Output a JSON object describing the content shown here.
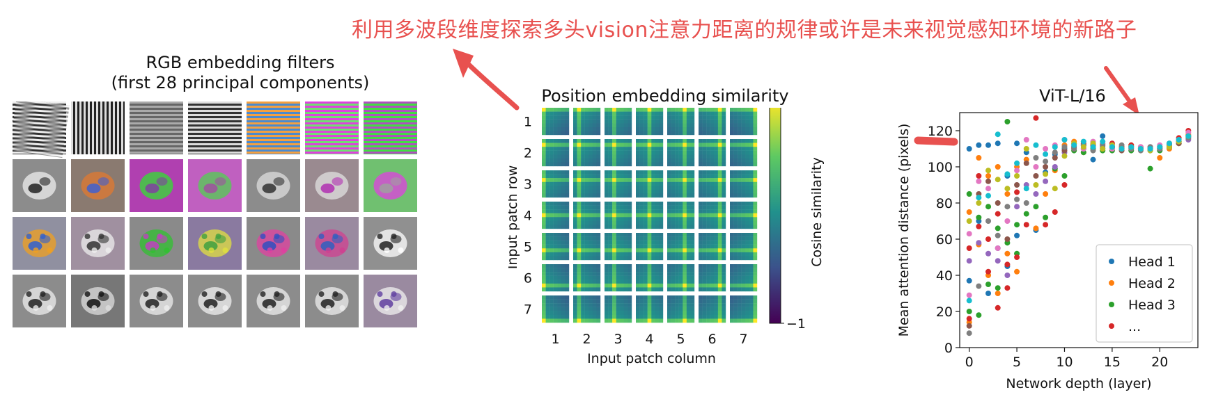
{
  "annotation": {
    "text": "利用多波段维度探索多头vision注意力距离的规律或许是未来视觉感知环境的新路子",
    "color": "#e8514f"
  },
  "filters_panel": {
    "title_line1": "RGB embedding filters",
    "title_line2": "(first 28 principal components)",
    "rows": 4,
    "cols": 7
  },
  "position_panel": {
    "title": "Position embedding similarity",
    "row_labels": [
      "1",
      "2",
      "3",
      "4",
      "5",
      "6",
      "7"
    ],
    "col_labels": [
      "1",
      "2",
      "3",
      "4",
      "5",
      "6",
      "7"
    ],
    "ylabel": "Input patch row",
    "xlabel": "Input patch column",
    "colorbar_label": "Cosine similarity",
    "colorbar_max": "1",
    "colorbar_min": "−1"
  },
  "chart_data": {
    "type": "scatter",
    "title": "ViT-L/16",
    "xlabel": "Network depth (layer)",
    "ylabel": "Mean attention distance (pixels)",
    "xlim": [
      -1,
      24
    ],
    "ylim": [
      0,
      130
    ],
    "xticks": [
      0,
      5,
      10,
      15,
      20
    ],
    "yticks": [
      0,
      20,
      40,
      60,
      80,
      100,
      120
    ],
    "legend": [
      "Head 1",
      "Head 2",
      "Head 3",
      "..."
    ],
    "legend_position": "lower-right",
    "series": [
      {
        "name": "Head 1",
        "color": "#1f77b4",
        "points": [
          [
            0,
            110
          ],
          [
            0,
            37
          ],
          [
            1,
            112
          ],
          [
            1,
            70
          ],
          [
            2,
            112
          ],
          [
            2,
            30
          ],
          [
            3,
            113
          ],
          [
            3,
            55
          ],
          [
            4,
            95
          ],
          [
            4,
            45
          ],
          [
            5,
            113
          ],
          [
            5,
            62
          ],
          [
            6,
            108
          ],
          [
            7,
            65
          ],
          [
            8,
            97
          ],
          [
            9,
            107
          ],
          [
            10,
            110
          ],
          [
            11,
            113
          ],
          [
            12,
            112
          ],
          [
            13,
            104
          ],
          [
            14,
            117
          ],
          [
            15,
            111
          ],
          [
            16,
            110
          ],
          [
            17,
            111
          ],
          [
            18,
            110
          ],
          [
            19,
            109
          ],
          [
            20,
            111
          ],
          [
            21,
            112
          ],
          [
            22,
            114
          ],
          [
            23,
            116
          ]
        ]
      },
      {
        "name": "Head 2",
        "color": "#ff7f0e",
        "points": [
          [
            0,
            75
          ],
          [
            0,
            14
          ],
          [
            1,
            105
          ],
          [
            1,
            57
          ],
          [
            2,
            95
          ],
          [
            2,
            40
          ],
          [
            3,
            100
          ],
          [
            3,
            30
          ],
          [
            4,
            85
          ],
          [
            4,
            52
          ],
          [
            5,
            100
          ],
          [
            5,
            42
          ],
          [
            6,
            104
          ],
          [
            7,
            66
          ],
          [
            8,
            85
          ],
          [
            9,
            98
          ],
          [
            10,
            112
          ],
          [
            11,
            114
          ],
          [
            12,
            108
          ],
          [
            13,
            112
          ],
          [
            14,
            113
          ],
          [
            15,
            110
          ],
          [
            16,
            110
          ],
          [
            17,
            112
          ],
          [
            18,
            110
          ],
          [
            19,
            110
          ],
          [
            20,
            105
          ],
          [
            21,
            110
          ],
          [
            22,
            113
          ],
          [
            23,
            118
          ]
        ]
      },
      {
        "name": "Head 3",
        "color": "#2ca02c",
        "points": [
          [
            0,
            85
          ],
          [
            0,
            20
          ],
          [
            1,
            72
          ],
          [
            1,
            18
          ],
          [
            2,
            78
          ],
          [
            2,
            35
          ],
          [
            3,
            66
          ],
          [
            3,
            33
          ],
          [
            4,
            125
          ],
          [
            4,
            58
          ],
          [
            5,
            68
          ],
          [
            5,
            52
          ],
          [
            6,
            74
          ],
          [
            7,
            78
          ],
          [
            8,
            72
          ],
          [
            9,
            99
          ],
          [
            10,
            95
          ],
          [
            11,
            109
          ],
          [
            12,
            108
          ],
          [
            13,
            110
          ],
          [
            14,
            109
          ],
          [
            15,
            109
          ],
          [
            16,
            110
          ],
          [
            17,
            109
          ],
          [
            18,
            110
          ],
          [
            19,
            99
          ],
          [
            20,
            109
          ],
          [
            21,
            111
          ],
          [
            22,
            113
          ],
          [
            23,
            117
          ]
        ]
      },
      {
        "name": "...",
        "color": "#d62728",
        "points": [
          [
            0,
            55
          ],
          [
            0,
            16
          ],
          [
            1,
            67
          ],
          [
            1,
            95
          ],
          [
            2,
            60
          ],
          [
            2,
            42
          ],
          [
            3,
            74
          ],
          [
            3,
            22
          ],
          [
            4,
            46
          ],
          [
            4,
            33
          ],
          [
            5,
            86
          ],
          [
            5,
            50
          ],
          [
            6,
            68
          ],
          [
            7,
            127
          ],
          [
            8,
            68
          ],
          [
            9,
            75
          ],
          [
            10,
            90
          ],
          [
            11,
            110
          ],
          [
            12,
            113
          ],
          [
            13,
            112
          ],
          [
            14,
            112
          ],
          [
            15,
            113
          ],
          [
            16,
            111
          ],
          [
            17,
            112
          ],
          [
            18,
            111
          ],
          [
            19,
            110
          ],
          [
            20,
            111
          ],
          [
            21,
            113
          ],
          [
            22,
            116
          ],
          [
            23,
            120
          ]
        ]
      },
      {
        "name": "",
        "color": "#9467bd",
        "points": [
          [
            0,
            48
          ],
          [
            1,
            58
          ],
          [
            2,
            52
          ],
          [
            3,
            48
          ],
          [
            4,
            40
          ],
          [
            5,
            78
          ],
          [
            6,
            90
          ],
          [
            7,
            85
          ],
          [
            8,
            92
          ],
          [
            9,
            100
          ],
          [
            10,
            108
          ],
          [
            11,
            111
          ],
          [
            12,
            110
          ],
          [
            13,
            113
          ],
          [
            14,
            111
          ],
          [
            15,
            112
          ],
          [
            16,
            110
          ],
          [
            17,
            110
          ],
          [
            18,
            110
          ],
          [
            19,
            111
          ],
          [
            20,
            110
          ],
          [
            21,
            112
          ],
          [
            22,
            114
          ],
          [
            23,
            115
          ]
        ]
      },
      {
        "name": "",
        "color": "#8c564b",
        "points": [
          [
            0,
            12
          ],
          [
            1,
            85
          ],
          [
            2,
            92
          ],
          [
            3,
            80
          ],
          [
            4,
            60
          ],
          [
            5,
            90
          ],
          [
            6,
            102
          ],
          [
            7,
            95
          ],
          [
            8,
            100
          ],
          [
            9,
            105
          ],
          [
            10,
            109
          ],
          [
            11,
            111
          ],
          [
            12,
            112
          ],
          [
            13,
            111
          ],
          [
            14,
            110
          ],
          [
            15,
            111
          ],
          [
            16,
            109
          ],
          [
            17,
            111
          ],
          [
            18,
            110
          ],
          [
            19,
            110
          ],
          [
            20,
            110
          ],
          [
            21,
            111
          ],
          [
            22,
            113
          ],
          [
            23,
            117
          ]
        ]
      },
      {
        "name": "",
        "color": "#e377c2",
        "points": [
          [
            0,
            63
          ],
          [
            0,
            29
          ],
          [
            1,
            92
          ],
          [
            2,
            88
          ],
          [
            3,
            55
          ],
          [
            4,
            70
          ],
          [
            5,
            98
          ],
          [
            6,
            115
          ],
          [
            7,
            100
          ],
          [
            8,
            110
          ],
          [
            9,
            112
          ],
          [
            10,
            115
          ],
          [
            11,
            112
          ],
          [
            12,
            110
          ],
          [
            13,
            114
          ],
          [
            14,
            113
          ],
          [
            15,
            110
          ],
          [
            16,
            110
          ],
          [
            17,
            111
          ],
          [
            18,
            111
          ],
          [
            19,
            110
          ],
          [
            20,
            112
          ],
          [
            21,
            112
          ],
          [
            22,
            115
          ],
          [
            23,
            119
          ]
        ]
      },
      {
        "name": "",
        "color": "#7f7f7f",
        "points": [
          [
            0,
            8
          ],
          [
            1,
            34
          ],
          [
            2,
            70
          ],
          [
            3,
            62
          ],
          [
            4,
            78
          ],
          [
            5,
            82
          ],
          [
            6,
            80
          ],
          [
            7,
            105
          ],
          [
            8,
            103
          ],
          [
            9,
            108
          ],
          [
            10,
            111
          ],
          [
            11,
            110
          ],
          [
            12,
            112
          ],
          [
            13,
            109
          ],
          [
            14,
            112
          ],
          [
            15,
            111
          ],
          [
            16,
            112
          ],
          [
            17,
            110
          ],
          [
            18,
            109
          ],
          [
            19,
            111
          ],
          [
            20,
            110
          ],
          [
            21,
            112
          ],
          [
            22,
            114
          ],
          [
            23,
            116
          ]
        ]
      },
      {
        "name": "",
        "color": "#bcbd22",
        "points": [
          [
            0,
            70
          ],
          [
            1,
            80
          ],
          [
            2,
            98
          ],
          [
            3,
            93
          ],
          [
            4,
            88
          ],
          [
            5,
            95
          ],
          [
            6,
            110
          ],
          [
            7,
            90
          ],
          [
            8,
            96
          ],
          [
            9,
            88
          ],
          [
            10,
            106
          ],
          [
            11,
            113
          ],
          [
            12,
            111
          ],
          [
            13,
            113
          ],
          [
            14,
            110
          ],
          [
            15,
            112
          ],
          [
            16,
            110
          ],
          [
            17,
            111
          ],
          [
            18,
            110
          ],
          [
            19,
            109
          ],
          [
            20,
            111
          ],
          [
            21,
            111
          ],
          [
            22,
            114
          ],
          [
            23,
            117
          ]
        ]
      },
      {
        "name": "",
        "color": "#17becf",
        "points": [
          [
            0,
            26
          ],
          [
            1,
            83
          ],
          [
            2,
            84
          ],
          [
            3,
            118
          ],
          [
            4,
            96
          ],
          [
            5,
            102
          ],
          [
            6,
            88
          ],
          [
            7,
            112
          ],
          [
            8,
            107
          ],
          [
            9,
            111
          ],
          [
            10,
            115
          ],
          [
            11,
            112
          ],
          [
            12,
            114
          ],
          [
            13,
            111
          ],
          [
            14,
            114
          ],
          [
            15,
            111
          ],
          [
            16,
            110
          ],
          [
            17,
            111
          ],
          [
            18,
            110
          ],
          [
            19,
            110
          ],
          [
            20,
            111
          ],
          [
            21,
            113
          ],
          [
            22,
            115
          ],
          [
            23,
            117
          ]
        ]
      }
    ]
  }
}
